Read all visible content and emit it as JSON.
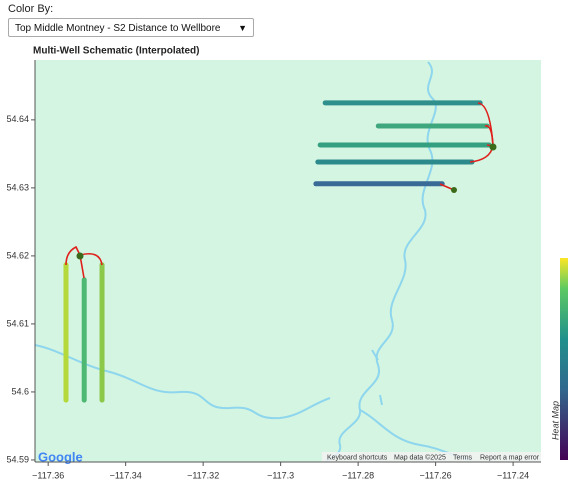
{
  "color_by_label": "Color By:",
  "dropdown": {
    "selected": "Top Middle Montney - S2 Distance to Wellbore",
    "arrow": "▼"
  },
  "chart_data": {
    "type": "line",
    "title": "Multi-Well Schematic (Interpolated)",
    "colorbar_label": "Heat Map",
    "xlim": [
      -117.3634,
      -117.2328
    ],
    "ylim": [
      54.5897,
      54.6488
    ],
    "xticks": [
      {
        "value": -117.36,
        "label": "−117.36"
      },
      {
        "value": -117.34,
        "label": "−117.34"
      },
      {
        "value": -117.32,
        "label": "−117.32"
      },
      {
        "value": -117.3,
        "label": "−117.3"
      },
      {
        "value": -117.28,
        "label": "−117.28"
      },
      {
        "value": -117.26,
        "label": "−117.26"
      },
      {
        "value": -117.24,
        "label": "−117.24"
      }
    ],
    "yticks": [
      54.59,
      54.6,
      54.61,
      54.62,
      54.63,
      54.64
    ],
    "series": [
      {
        "color": "#b5d93a",
        "x": [
          -117.3554,
          -117.3554
        ],
        "y": [
          54.6187,
          54.5988
        ]
      },
      {
        "color": "#4cb872",
        "x": [
          -117.3507,
          -117.3507
        ],
        "y": [
          54.6165,
          54.5988
        ]
      },
      {
        "color": "#8cc84a",
        "x": [
          -117.3461,
          -117.3461
        ],
        "y": [
          54.6187,
          54.5988
        ]
      },
      {
        "color": "#2e8f8c",
        "x": [
          -117.2885,
          -117.2485
        ],
        "y": [
          54.6425,
          54.6425
        ]
      },
      {
        "color": "#3fa77d",
        "x": [
          -117.2748,
          -117.2467
        ],
        "y": [
          54.6391,
          54.6391
        ]
      },
      {
        "color": "#35a080",
        "x": [
          -117.2898,
          -117.2462
        ],
        "y": [
          54.6363,
          54.6363
        ]
      },
      {
        "color": "#2d8a8c",
        "x": [
          -117.2904,
          -117.2506
        ],
        "y": [
          54.6338,
          54.6338
        ]
      },
      {
        "color": "#3a6a96",
        "x": [
          -117.2909,
          -117.2583
        ],
        "y": [
          54.6306,
          54.6306
        ]
      }
    ]
  },
  "map_attribution": {
    "logo": "Google",
    "shortcuts": "Keyboard shortcuts",
    "map_data": "Map data ©2025",
    "terms": "Terms",
    "report": "Report a map error"
  }
}
